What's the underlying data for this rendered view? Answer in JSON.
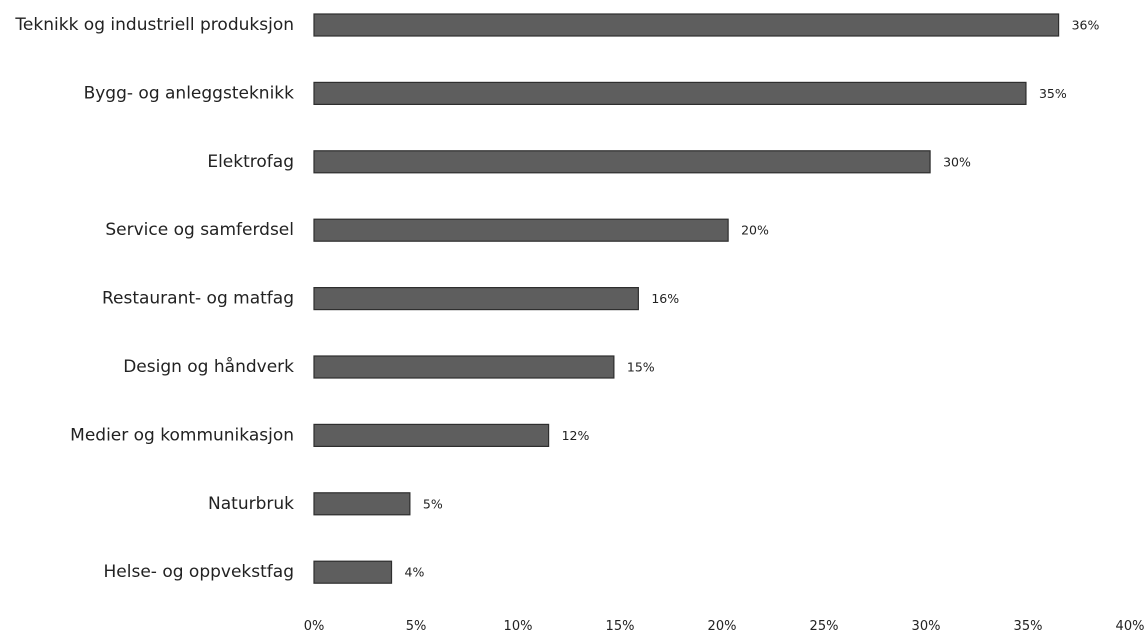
{
  "chart_data": {
    "type": "bar",
    "orientation": "horizontal",
    "categories": [
      "Teknikk og industriell produksjon",
      "Bygg- og anleggsteknikk",
      "Elektrofag",
      "Service og samferdsel",
      "Restaurant- og matfag",
      "Design og håndverk",
      "Medier og kommunikasjon",
      "Naturbruk",
      "Helse- og oppvekstfag"
    ],
    "values": [
      36.5,
      34.9,
      30.2,
      20.3,
      15.9,
      14.7,
      11.5,
      4.7,
      3.8
    ],
    "value_labels": [
      "36%",
      "35%",
      "30%",
      "20%",
      "16%",
      "15%",
      "12%",
      "5%",
      "4%"
    ],
    "xlim": [
      0,
      40
    ],
    "xticks": [
      0,
      5,
      10,
      15,
      20,
      25,
      30,
      35,
      40
    ],
    "xtick_labels": [
      "0%",
      "5%",
      "10%",
      "15%",
      "20%",
      "25%",
      "30%",
      "35%",
      "40%"
    ],
    "grid": false,
    "legend": "none",
    "bar_color": "#5e5e5e",
    "bar_edge_color": "#2e2e2e"
  }
}
